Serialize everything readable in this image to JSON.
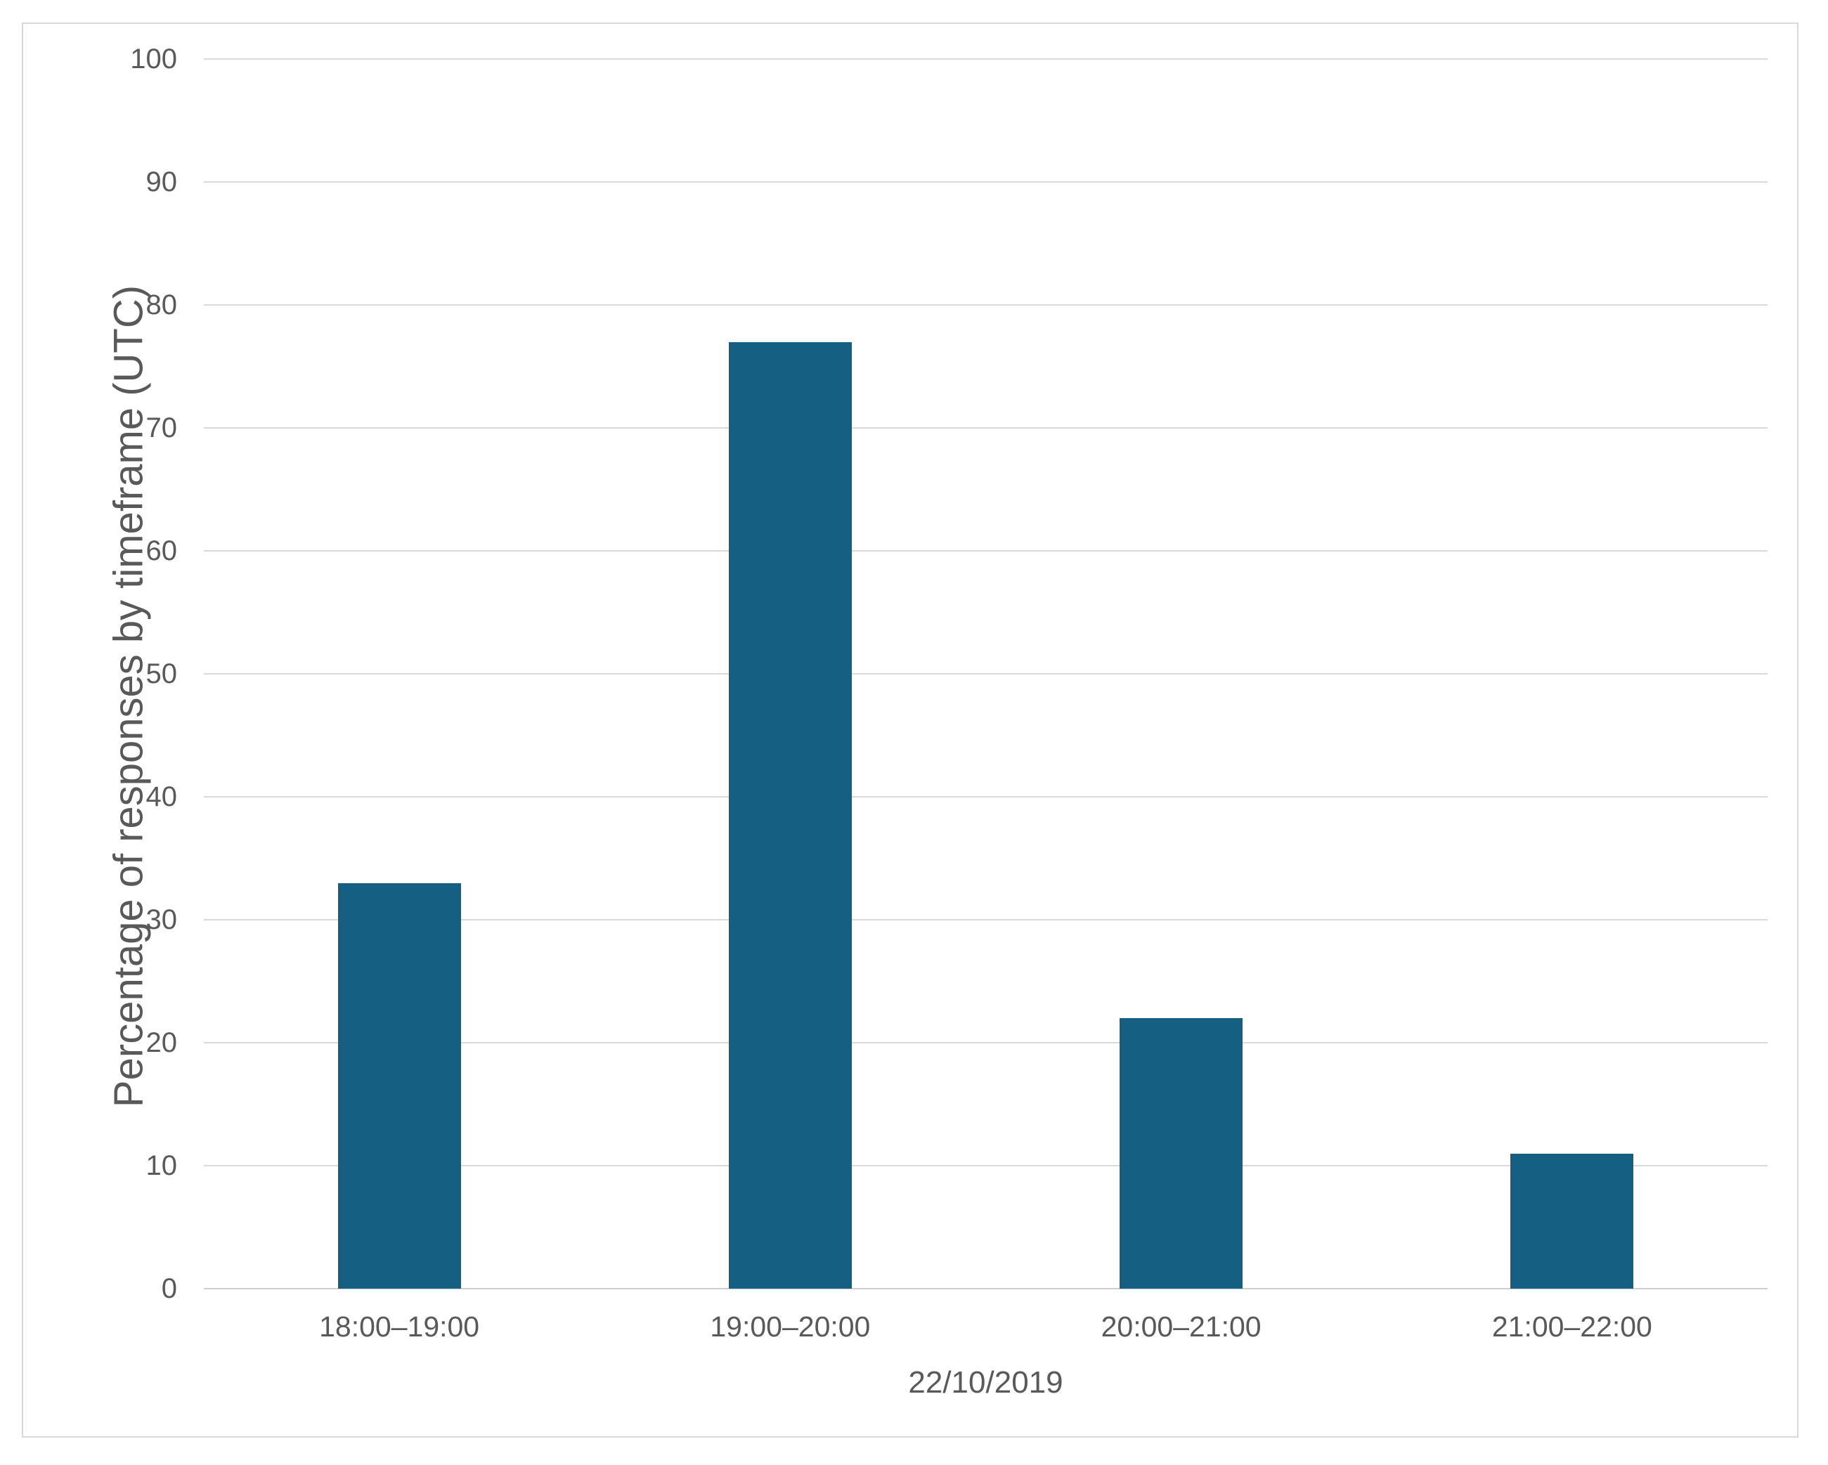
{
  "colors": {
    "bar_fill": "#156082",
    "text": "#595959",
    "gridline": "#D9D9D9",
    "frame_border": "#D9D9D9",
    "background": "#ffffff"
  },
  "chart_data": {
    "type": "bar",
    "title": "",
    "categories": [
      "18:00–19:00",
      "19:00–20:00",
      "20:00–21:00",
      "21:00–22:00"
    ],
    "values": [
      33,
      77,
      22,
      11
    ],
    "xlabel": "22/10/2019",
    "ylabel": "Percentage of responses by timeframe (UTC)",
    "ylim": [
      0,
      100
    ],
    "yticks": [
      0,
      10,
      20,
      30,
      40,
      50,
      60,
      70,
      80,
      90,
      100
    ],
    "grid": "horizontal",
    "legend": "none",
    "bar_color": "#156082"
  }
}
